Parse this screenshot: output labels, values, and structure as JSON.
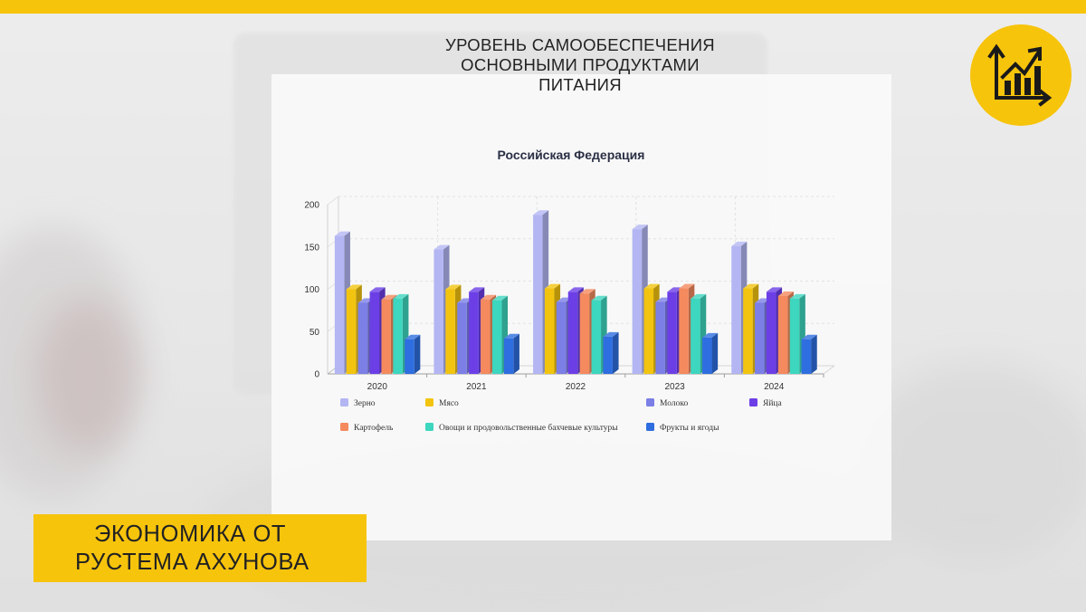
{
  "header": {
    "title_lines": [
      "УРОВЕНЬ САМООБЕСПЕЧЕНИЯ",
      "ОСНОВНЫМИ ПРОДУКТАМИ",
      "ПИТАНИЯ"
    ]
  },
  "brand": {
    "lines": [
      "ЭКОНОМИКА ОТ",
      "РУСТЕМА АХУНОВА"
    ]
  },
  "badge": {
    "icon": "growth-chart-icon"
  },
  "colors": {
    "accent": "#f7c40c"
  },
  "chart_data": {
    "type": "bar",
    "title": "Российская Федерация",
    "categories": [
      "2020",
      "2021",
      "2022",
      "2023",
      "2024"
    ],
    "ylim": [
      0,
      200
    ],
    "yticks": [
      0,
      50,
      100,
      150,
      200
    ],
    "grid": true,
    "legend_position": "bottom",
    "series": [
      {
        "name": "Зерно",
        "color": "#b3b6f2",
        "values": [
          163,
          147,
          188,
          171,
          151
        ]
      },
      {
        "name": "Мясо",
        "color": "#f2c40f",
        "values": [
          100,
          100,
          101,
          101,
          101
        ]
      },
      {
        "name": "Молоко",
        "color": "#7c7fe6",
        "values": [
          84,
          84,
          85,
          85,
          84
        ]
      },
      {
        "name": "Яйца",
        "color": "#6c3fe6",
        "values": [
          97,
          97,
          97,
          97,
          97
        ]
      },
      {
        "name": "Картофель",
        "color": "#f48a5e",
        "values": [
          88,
          88,
          95,
          101,
          92
        ]
      },
      {
        "name": "Овощи и продовольственные бахчевые культуры",
        "color": "#3dd6bf",
        "values": [
          89,
          87,
          87,
          89,
          89
        ]
      },
      {
        "name": "Фрукты и ягоды",
        "color": "#2e6ee0",
        "values": [
          41,
          42,
          44,
          43,
          41
        ]
      }
    ]
  }
}
